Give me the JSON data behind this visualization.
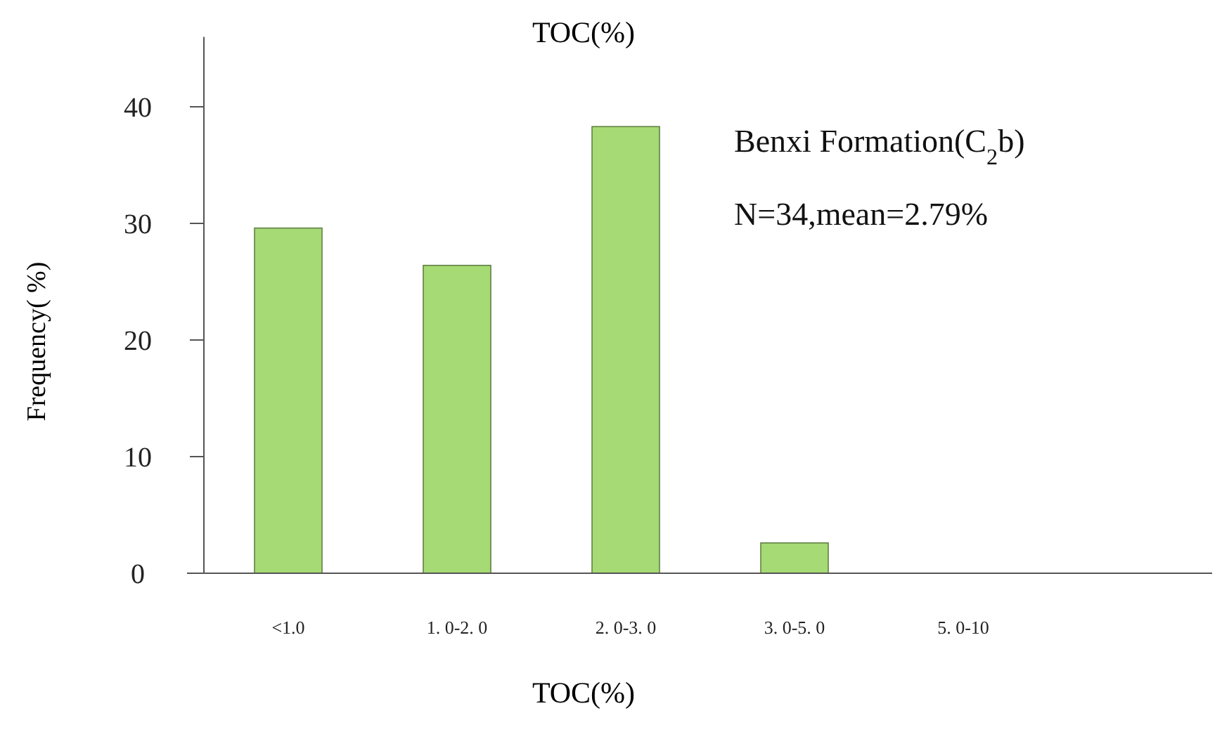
{
  "chart_data": {
    "type": "bar",
    "title": "TOC(%)",
    "xlabel": "TOC(%)",
    "ylabel": "Frequency( %)",
    "categories": [
      "<1.0",
      "1. 0-2. 0",
      "2. 0-3. 0",
      "3. 0-5. 0",
      "5. 0-10"
    ],
    "values": [
      29.6,
      26.4,
      38.3,
      2.6,
      0
    ],
    "color": "#a6da74",
    "ylim": [
      0,
      46
    ],
    "yticks": [
      0,
      10,
      20,
      30,
      40
    ],
    "grid": false,
    "annotations": [
      "Benxi Formation(C$_{2}$b)",
      "N=34,mean=2.79%"
    ]
  }
}
